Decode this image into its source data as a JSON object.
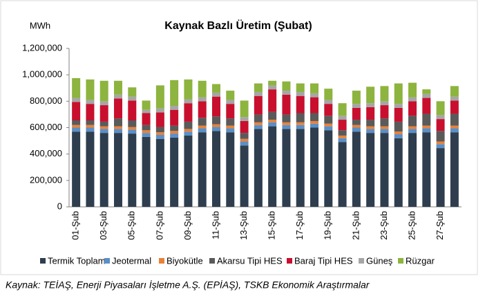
{
  "chart_data": {
    "type": "stacked-bar",
    "title": "Kaynak Bazlı Üretim (Şubat)",
    "y_label": "MWh",
    "source": "Kaynak: TEİAŞ, Enerji Piyasaları İşletme A.Ş. (EPİAŞ), TSKB Ekonomik Araştırmalar",
    "categories": [
      "01-Şub",
      null,
      "03-Şub",
      null,
      "05-Şub",
      null,
      "07-Şub",
      null,
      "09-Şub",
      null,
      "11-Şub",
      null,
      "13-Şub",
      null,
      "15-Şub",
      null,
      "17-Şub",
      null,
      "19-Şub",
      null,
      "21-Şub",
      null,
      "23-Şub",
      null,
      "25-Şub",
      null,
      "27-Şub",
      null
    ],
    "series": [
      {
        "name": "Termik Toplam",
        "color": "#2f3e4e",
        "values": [
          570000,
          570000,
          560000,
          560000,
          555000,
          530000,
          515000,
          525000,
          540000,
          565000,
          575000,
          565000,
          465000,
          590000,
          610000,
          590000,
          590000,
          600000,
          580000,
          490000,
          570000,
          560000,
          560000,
          520000,
          560000,
          565000,
          445000,
          565000
        ]
      },
      {
        "name": "Jeotermal",
        "color": "#5b8fc7",
        "values": [
          30000,
          30000,
          30000,
          30000,
          30000,
          30000,
          30000,
          30000,
          30000,
          30000,
          30000,
          30000,
          30000,
          30000,
          30000,
          30000,
          30000,
          30000,
          30000,
          30000,
          30000,
          30000,
          30000,
          30000,
          30000,
          30000,
          30000,
          30000
        ]
      },
      {
        "name": "Biyokütle",
        "color": "#e8823a",
        "values": [
          20000,
          20000,
          20000,
          20000,
          20000,
          20000,
          20000,
          20000,
          20000,
          20000,
          20000,
          20000,
          20000,
          20000,
          20000,
          20000,
          20000,
          20000,
          20000,
          20000,
          20000,
          20000,
          20000,
          20000,
          20000,
          20000,
          20000,
          20000
        ]
      },
      {
        "name": "Akarsu Tipi HES",
        "color": "#5a5a5a",
        "values": [
          35000,
          35000,
          35000,
          60000,
          50000,
          40000,
          40000,
          40000,
          55000,
          60000,
          60000,
          55000,
          45000,
          60000,
          60000,
          60000,
          70000,
          60000,
          60000,
          40000,
          40000,
          50000,
          60000,
          75000,
          80000,
          90000,
          80000,
          90000
        ]
      },
      {
        "name": "Baraj Tipi HES",
        "color": "#c8102e",
        "values": [
          140000,
          125000,
          125000,
          150000,
          150000,
          90000,
          110000,
          120000,
          140000,
          125000,
          150000,
          110000,
          90000,
          140000,
          170000,
          150000,
          130000,
          120000,
          90000,
          80000,
          90000,
          95000,
          100000,
          105000,
          110000,
          120000,
          90000,
          100000
        ]
      },
      {
        "name": "Güneş",
        "color": "#a6a6a6",
        "values": [
          30000,
          30000,
          30000,
          30000,
          30000,
          25000,
          30000,
          30000,
          30000,
          30000,
          30000,
          30000,
          30000,
          30000,
          30000,
          30000,
          30000,
          30000,
          30000,
          30000,
          30000,
          30000,
          30000,
          30000,
          30000,
          30000,
          30000,
          30000
        ]
      },
      {
        "name": "Rüzgar",
        "color": "#8db43e",
        "values": [
          150000,
          155000,
          155000,
          105000,
          70000,
          70000,
          175000,
          195000,
          150000,
          125000,
          65000,
          70000,
          125000,
          65000,
          35000,
          70000,
          65000,
          75000,
          85000,
          95000,
          100000,
          125000,
          115000,
          155000,
          110000,
          35000,
          105000,
          80000
        ]
      }
    ],
    "ylim": [
      0,
      1200000
    ],
    "yticks": [
      0,
      {
        "value": 200000,
        "label": "200,000"
      },
      {
        "value": 400000,
        "label": "400,000"
      },
      {
        "value": 600000,
        "label": "600,000"
      },
      {
        "value": 800000,
        "label": "800,000"
      },
      {
        "value": 1000000,
        "label": "1,000,000"
      },
      {
        "value": 1200000,
        "label": "1,200,000"
      }
    ],
    "grid": false
  }
}
